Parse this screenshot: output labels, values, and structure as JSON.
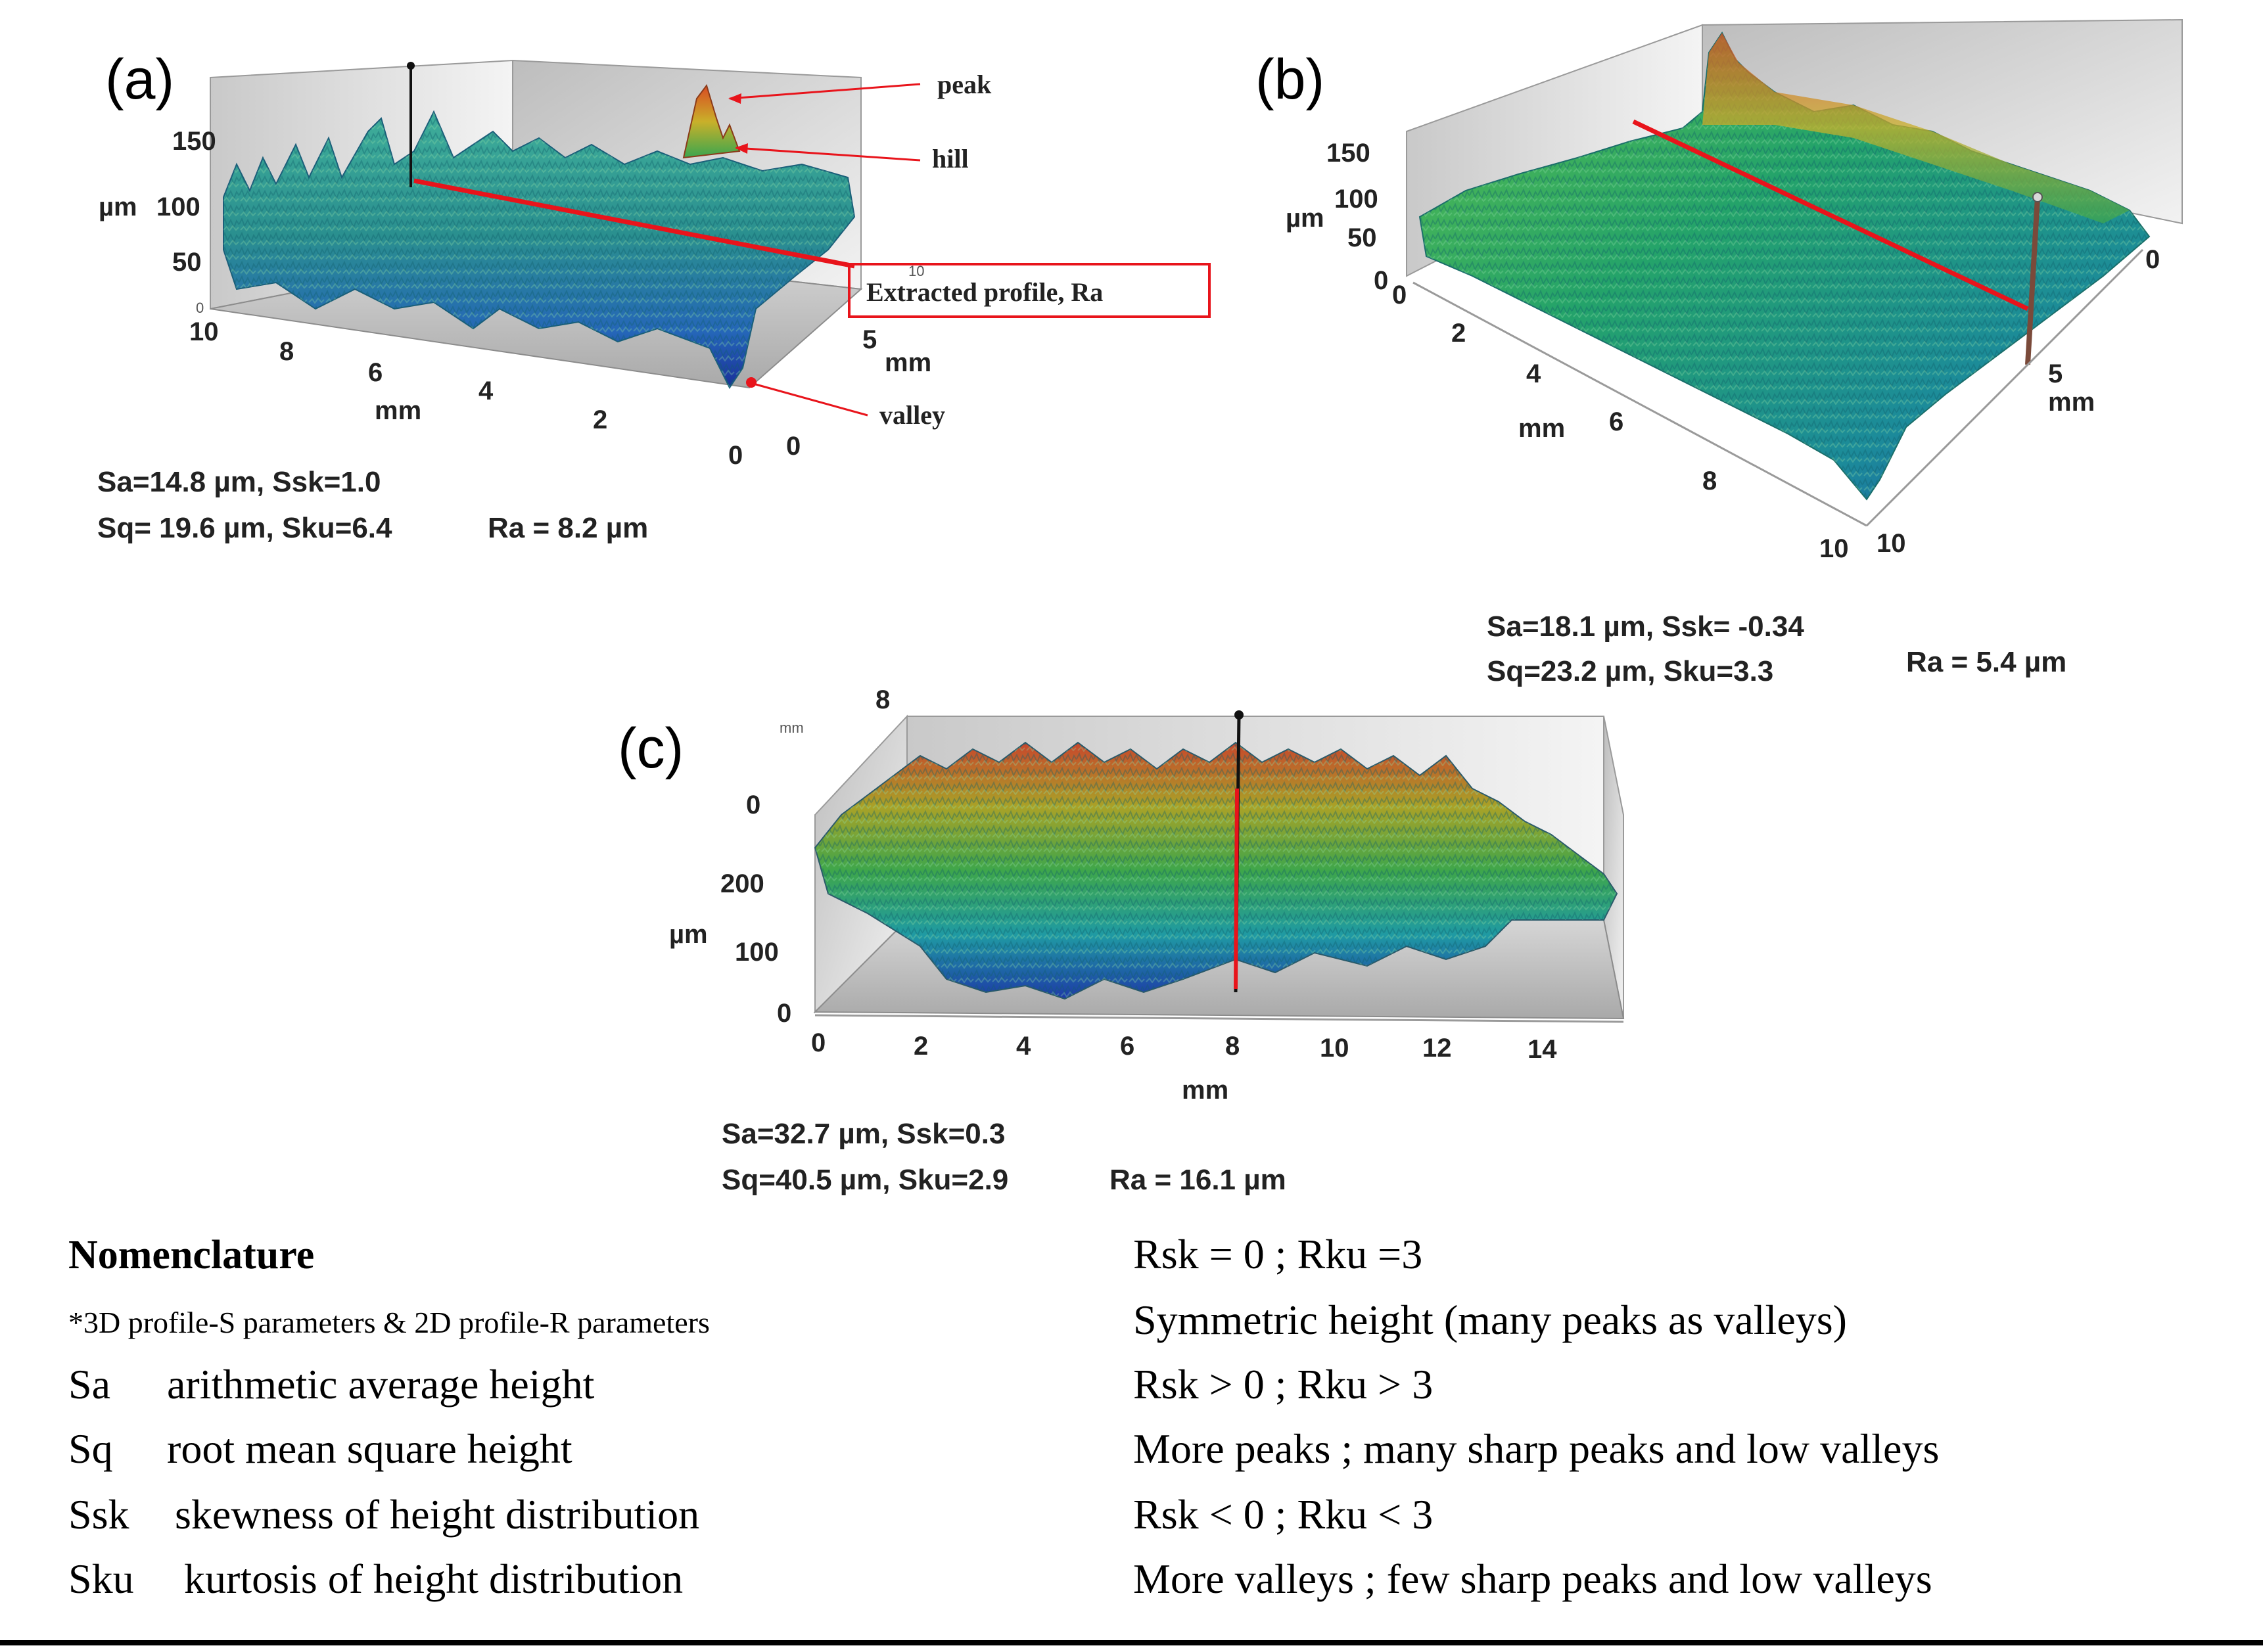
{
  "figure": {
    "panel_a": {
      "label": "(a)",
      "z_ticks": [
        "150",
        "100",
        "50",
        "0"
      ],
      "z_unit": "µm",
      "x_ticks": [
        "10",
        "8",
        "6",
        "4",
        "2",
        "0"
      ],
      "x_unit": "mm",
      "y_ticks": [
        "0",
        "5",
        "10"
      ],
      "y_unit": "mm",
      "annotations": {
        "peak": "peak",
        "hill": "hill",
        "valley": "valley",
        "profile": "Extracted profile, Ra"
      },
      "stats": {
        "line1": "Sa=14.8 µm,  Ssk=1.0",
        "line2": "Sq= 19.6 µm, Sku=6.4",
        "ra": "Ra = 8.2 µm"
      }
    },
    "panel_b": {
      "label": "(b)",
      "z_ticks": [
        "150",
        "100",
        "50",
        "0"
      ],
      "z_unit": "µm",
      "x_ticks": [
        "0",
        "2",
        "4",
        "6",
        "8",
        "10"
      ],
      "x_unit": "mm",
      "y_ticks": [
        "0",
        "5",
        "10"
      ],
      "y_unit": "mm",
      "stats": {
        "line1": "Sa=18.1 µm,  Ssk= -0.34",
        "line2": "Sq=23.2 µm, Sku=3.3",
        "ra": "Ra = 5.4 µm"
      }
    },
    "panel_c": {
      "label": "(c)",
      "top_ticks": [
        "8",
        "0"
      ],
      "top_unit": "mm",
      "z_ticks": [
        "200",
        "100",
        "0"
      ],
      "z_unit": "µm",
      "x_ticks": [
        "0",
        "2",
        "4",
        "6",
        "8",
        "10",
        "12",
        "14"
      ],
      "x_unit": "mm",
      "stats": {
        "line1": "Sa=32.7 µm,  Ssk=0.3",
        "line2": "Sq=40.5 µm, Sku=2.9",
        "ra": "Ra = 16.1 µm"
      }
    }
  },
  "nomenclature": {
    "title": "Nomenclature",
    "note": "*3D profile-S parameters & 2D profile-R parameters",
    "terms": [
      {
        "sym": "Sa",
        "def": "arithmetic average height"
      },
      {
        "sym": "Sq",
        "def": "root mean square height"
      },
      {
        "sym": "Ssk",
        "def": "skewness of height distribution"
      },
      {
        "sym": "Sku",
        "def": "kurtosis of height distribution"
      }
    ],
    "right": [
      "Rsk = 0 ; Rku =3",
      "Symmetric height (many peaks as valleys)",
      "Rsk > 0 ; Rku > 3",
      "More peaks ; many sharp peaks and low valleys",
      "Rsk < 0 ; Rku < 3",
      "More valleys ; few sharp peaks and low valleys"
    ]
  },
  "colors": {
    "accent_red": "#e8141b",
    "rule": "#000000"
  }
}
